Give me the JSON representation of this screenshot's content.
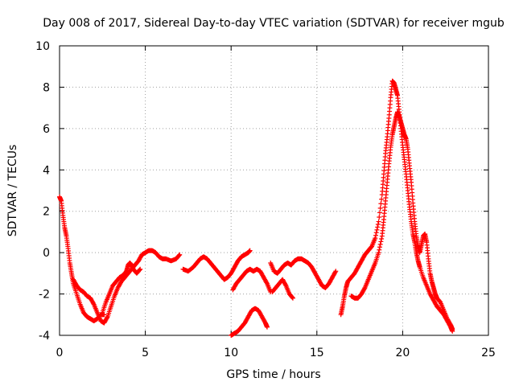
{
  "chart_data": {
    "type": "scatter",
    "title": "Day 008 of 2017, Sidereal Day-to-day VTEC variation (SDTVAR) for receiver mgub",
    "xlabel": "GPS time / hours",
    "ylabel": "SDTVAR / TECUs",
    "xlim": [
      0,
      25
    ],
    "ylim": [
      -4,
      10
    ],
    "xticks": [
      0,
      5,
      10,
      15,
      20,
      25
    ],
    "yticks": [
      -4,
      -2,
      0,
      2,
      4,
      6,
      8,
      10
    ],
    "grid": true,
    "marker": "+",
    "series": [
      {
        "name": "SDTVAR",
        "color": "#ff0000",
        "segments": [
          [
            [
              0.0,
              2.7
            ],
            [
              0.1,
              2.5
            ],
            [
              0.2,
              1.8
            ],
            [
              0.3,
              1.2
            ],
            [
              0.4,
              0.8
            ],
            [
              0.5,
              0.2
            ],
            [
              0.6,
              -0.5
            ],
            [
              0.7,
              -1.0
            ],
            [
              0.8,
              -1.5
            ],
            [
              1.0,
              -2.0
            ],
            [
              1.2,
              -2.5
            ],
            [
              1.4,
              -2.9
            ],
            [
              1.6,
              -3.1
            ],
            [
              1.8,
              -3.2
            ],
            [
              2.0,
              -3.3
            ],
            [
              2.2,
              -3.2
            ],
            [
              2.4,
              -3.0
            ],
            [
              2.6,
              -3.0
            ]
          ],
          [
            [
              0.8,
              -1.3
            ],
            [
              1.0,
              -1.6
            ],
            [
              1.2,
              -1.8
            ],
            [
              1.4,
              -1.9
            ],
            [
              1.6,
              -2.1
            ],
            [
              1.8,
              -2.2
            ],
            [
              2.0,
              -2.5
            ],
            [
              2.2,
              -2.9
            ],
            [
              2.4,
              -3.3
            ],
            [
              2.6,
              -3.4
            ],
            [
              2.8,
              -3.1
            ],
            [
              3.0,
              -2.6
            ],
            [
              3.2,
              -2.1
            ],
            [
              3.4,
              -1.7
            ],
            [
              3.6,
              -1.4
            ],
            [
              3.8,
              -1.2
            ],
            [
              4.0,
              -1.0
            ],
            [
              4.2,
              -0.8
            ],
            [
              4.4,
              -0.6
            ],
            [
              4.6,
              -0.4
            ],
            [
              4.8,
              -0.1
            ],
            [
              5.0,
              0.0
            ],
            [
              5.2,
              0.1
            ],
            [
              5.4,
              0.1
            ],
            [
              5.6,
              0.0
            ],
            [
              5.8,
              -0.2
            ],
            [
              6.0,
              -0.3
            ],
            [
              6.2,
              -0.3
            ],
            [
              6.5,
              -0.4
            ],
            [
              6.8,
              -0.3
            ],
            [
              7.0,
              -0.1
            ]
          ],
          [
            [
              2.5,
              -2.9
            ],
            [
              2.7,
              -2.4
            ],
            [
              2.9,
              -2.0
            ],
            [
              3.1,
              -1.6
            ],
            [
              3.3,
              -1.4
            ],
            [
              3.5,
              -1.2
            ],
            [
              3.7,
              -1.1
            ],
            [
              3.9,
              -0.9
            ],
            [
              4.0,
              -0.6
            ],
            [
              4.1,
              -0.5
            ],
            [
              4.2,
              -0.6
            ],
            [
              4.3,
              -0.8
            ],
            [
              4.5,
              -1.0
            ],
            [
              4.7,
              -0.8
            ]
          ],
          [
            [
              7.2,
              -0.8
            ],
            [
              7.5,
              -0.9
            ],
            [
              7.8,
              -0.7
            ],
            [
              8.0,
              -0.5
            ],
            [
              8.2,
              -0.3
            ],
            [
              8.4,
              -0.2
            ],
            [
              8.6,
              -0.3
            ],
            [
              8.8,
              -0.5
            ],
            [
              9.0,
              -0.7
            ],
            [
              9.2,
              -0.9
            ],
            [
              9.4,
              -1.1
            ],
            [
              9.6,
              -1.3
            ],
            [
              9.8,
              -1.2
            ],
            [
              10.0,
              -1.0
            ],
            [
              10.2,
              -0.7
            ],
            [
              10.4,
              -0.4
            ],
            [
              10.6,
              -0.2
            ],
            [
              10.8,
              -0.1
            ],
            [
              11.0,
              0.0
            ],
            [
              11.1,
              0.1
            ]
          ],
          [
            [
              10.1,
              -1.8
            ],
            [
              10.3,
              -1.5
            ],
            [
              10.5,
              -1.3
            ],
            [
              10.7,
              -1.1
            ],
            [
              10.9,
              -0.9
            ],
            [
              11.1,
              -0.8
            ],
            [
              11.3,
              -0.9
            ],
            [
              11.5,
              -0.8
            ],
            [
              11.7,
              -0.9
            ],
            [
              11.9,
              -1.2
            ],
            [
              12.1,
              -1.5
            ],
            [
              12.3,
              -1.9
            ]
          ],
          [
            [
              10.0,
              -4.0
            ],
            [
              10.2,
              -3.9
            ],
            [
              10.4,
              -3.8
            ],
            [
              10.6,
              -3.6
            ],
            [
              10.8,
              -3.4
            ],
            [
              11.0,
              -3.1
            ],
            [
              11.2,
              -2.8
            ],
            [
              11.4,
              -2.7
            ],
            [
              11.6,
              -2.8
            ],
            [
              11.8,
              -3.1
            ],
            [
              12.0,
              -3.4
            ],
            [
              12.1,
              -3.6
            ]
          ],
          [
            [
              12.3,
              -0.5
            ],
            [
              12.5,
              -0.9
            ],
            [
              12.7,
              -1.0
            ],
            [
              12.9,
              -0.8
            ],
            [
              13.1,
              -0.6
            ],
            [
              13.3,
              -0.5
            ],
            [
              13.5,
              -0.6
            ],
            [
              13.7,
              -0.4
            ],
            [
              13.9,
              -0.3
            ],
            [
              14.1,
              -0.3
            ],
            [
              14.3,
              -0.4
            ],
            [
              14.5,
              -0.5
            ],
            [
              14.7,
              -0.7
            ],
            [
              14.9,
              -1.0
            ],
            [
              15.1,
              -1.3
            ],
            [
              15.3,
              -1.6
            ],
            [
              15.5,
              -1.7
            ],
            [
              15.7,
              -1.5
            ],
            [
              15.9,
              -1.2
            ],
            [
              16.1,
              -0.9
            ]
          ],
          [
            [
              12.4,
              -1.9
            ],
            [
              12.6,
              -1.7
            ],
            [
              12.8,
              -1.5
            ],
            [
              13.0,
              -1.3
            ],
            [
              13.2,
              -1.6
            ],
            [
              13.4,
              -2.0
            ],
            [
              13.6,
              -2.2
            ]
          ],
          [
            [
              16.4,
              -3.0
            ],
            [
              16.5,
              -2.6
            ],
            [
              16.6,
              -2.1
            ],
            [
              16.7,
              -1.7
            ],
            [
              16.8,
              -1.4
            ],
            [
              17.0,
              -1.2
            ],
            [
              17.2,
              -1.0
            ],
            [
              17.4,
              -0.7
            ],
            [
              17.6,
              -0.4
            ],
            [
              17.8,
              -0.1
            ],
            [
              18.0,
              0.1
            ],
            [
              18.2,
              0.3
            ],
            [
              18.4,
              0.7
            ],
            [
              18.6,
              1.5
            ],
            [
              18.8,
              2.8
            ],
            [
              18.9,
              3.8
            ],
            [
              19.0,
              4.8
            ],
            [
              19.1,
              5.6
            ],
            [
              19.2,
              6.5
            ],
            [
              19.3,
              7.5
            ],
            [
              19.4,
              8.3
            ],
            [
              19.5,
              8.2
            ],
            [
              19.6,
              7.9
            ],
            [
              19.7,
              7.6
            ],
            [
              19.8,
              6.8
            ],
            [
              19.9,
              6.0
            ],
            [
              20.0,
              5.2
            ],
            [
              20.1,
              4.5
            ],
            [
              20.2,
              3.8
            ],
            [
              20.3,
              3.0
            ],
            [
              20.4,
              2.2
            ],
            [
              20.5,
              1.5
            ],
            [
              20.6,
              0.9
            ],
            [
              20.7,
              0.5
            ],
            [
              20.8,
              0.0
            ],
            [
              20.9,
              -0.4
            ],
            [
              21.0,
              -0.7
            ],
            [
              21.2,
              -1.2
            ],
            [
              21.4,
              -1.6
            ],
            [
              21.6,
              -2.0
            ],
            [
              21.8,
              -2.3
            ],
            [
              22.0,
              -2.6
            ],
            [
              22.2,
              -2.8
            ],
            [
              22.4,
              -3.0
            ],
            [
              22.6,
              -3.3
            ],
            [
              22.8,
              -3.6
            ],
            [
              22.9,
              -3.8
            ]
          ],
          [
            [
              17.0,
              -2.1
            ],
            [
              17.2,
              -2.2
            ],
            [
              17.4,
              -2.2
            ],
            [
              17.6,
              -2.0
            ],
            [
              17.8,
              -1.7
            ],
            [
              18.0,
              -1.3
            ],
            [
              18.2,
              -0.9
            ],
            [
              18.4,
              -0.5
            ],
            [
              18.6,
              0.0
            ],
            [
              18.8,
              0.8
            ],
            [
              18.9,
              1.6
            ],
            [
              19.0,
              2.5
            ],
            [
              19.1,
              3.4
            ],
            [
              19.2,
              4.3
            ],
            [
              19.3,
              5.1
            ],
            [
              19.4,
              5.7
            ],
            [
              19.5,
              6.1
            ],
            [
              19.6,
              6.5
            ],
            [
              19.7,
              6.8
            ],
            [
              19.8,
              6.6
            ],
            [
              19.9,
              6.3
            ],
            [
              20.0,
              6.0
            ],
            [
              20.1,
              5.7
            ],
            [
              20.2,
              5.5
            ],
            [
              20.3,
              5.0
            ],
            [
              20.4,
              4.2
            ],
            [
              20.5,
              3.4
            ],
            [
              20.6,
              2.4
            ],
            [
              20.7,
              1.5
            ],
            [
              20.8,
              0.8
            ],
            [
              20.9,
              0.3
            ],
            [
              21.0,
              0.0
            ],
            [
              21.1,
              0.4
            ],
            [
              21.2,
              0.8
            ],
            [
              21.3,
              0.9
            ],
            [
              21.4,
              0.5
            ],
            [
              21.5,
              -0.3
            ],
            [
              21.6,
              -1.0
            ],
            [
              21.7,
              -1.4
            ],
            [
              21.8,
              -1.7
            ],
            [
              21.9,
              -2.0
            ],
            [
              22.0,
              -2.2
            ],
            [
              22.2,
              -2.4
            ],
            [
              22.4,
              -2.8
            ],
            [
              22.6,
              -3.2
            ],
            [
              22.8,
              -3.5
            ],
            [
              22.9,
              -3.7
            ]
          ]
        ]
      }
    ]
  }
}
